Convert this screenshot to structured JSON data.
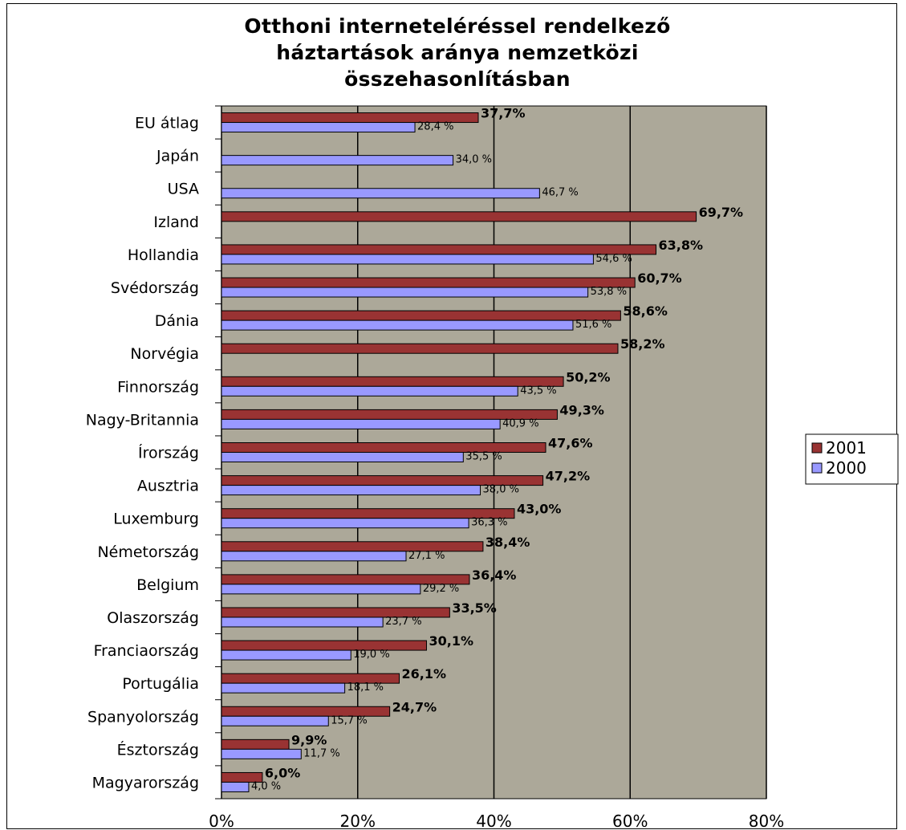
{
  "chart_data": {
    "type": "bar",
    "orientation": "horizontal",
    "title": "Otthoni interneteléréssel rendelkező\nháztartások aránya nemzetközi\nösszehasonlításban",
    "categories": [
      "EU átlag",
      "Japán",
      "USA",
      "Izland",
      "Hollandia",
      "Svédország",
      "Dánia",
      "Norvégia",
      "Finnország",
      "Nagy-Britannia",
      "Írország",
      "Ausztria",
      "Luxemburg",
      "Németország",
      "Belgium",
      "Olaszország",
      "Franciaország",
      "Portugália",
      "Spanyolország",
      "Észtország",
      "Magyarország"
    ],
    "series": [
      {
        "name": "2001",
        "color": "#993333",
        "values": [
          37.7,
          null,
          null,
          69.7,
          63.8,
          60.7,
          58.6,
          58.2,
          50.2,
          49.3,
          47.6,
          47.2,
          43.0,
          38.4,
          36.4,
          33.5,
          30.1,
          26.1,
          24.7,
          9.9,
          6.0
        ],
        "labels": [
          "37,7%",
          "",
          "",
          "69,7%",
          "63,8%",
          "60,7%",
          "58,6%",
          "58,2%",
          "50,2%",
          "49,3%",
          "47,6%",
          "47,2%",
          "43,0%",
          "38,4%",
          "36,4%",
          "33,5%",
          "30,1%",
          "26,1%",
          "24,7%",
          "9,9%",
          "6,0%"
        ]
      },
      {
        "name": "2000",
        "color": "#9999ff",
        "values": [
          28.4,
          34.0,
          46.7,
          null,
          54.6,
          53.8,
          51.6,
          null,
          43.5,
          40.9,
          35.5,
          38.0,
          36.3,
          27.1,
          29.2,
          23.7,
          19.0,
          18.1,
          15.7,
          11.7,
          4.0
        ],
        "labels": [
          "28,4 %",
          "34,0 %",
          "46,7 %",
          "",
          "54,6 %",
          "53,8 %",
          "51,6 %",
          "",
          "43,5 %",
          "40,9 %",
          "35,5 %",
          "38,0 %",
          "36,3 %",
          "27,1 %",
          "29,2 %",
          "23,7 %",
          "19,0 %",
          "18,1 %",
          "15,7 %",
          "11,7 %",
          "4,0 %"
        ]
      }
    ],
    "xlim": [
      0,
      80
    ],
    "x_ticks": [
      0,
      20,
      40,
      60,
      80
    ],
    "x_tick_labels": [
      "0%",
      "20%",
      "40%",
      "60%",
      "80%"
    ],
    "xlabel": "",
    "ylabel": "",
    "grid": true,
    "plot_background": "#aca899",
    "legend": {
      "position": "right",
      "entries": [
        "2001",
        "2000"
      ]
    }
  }
}
